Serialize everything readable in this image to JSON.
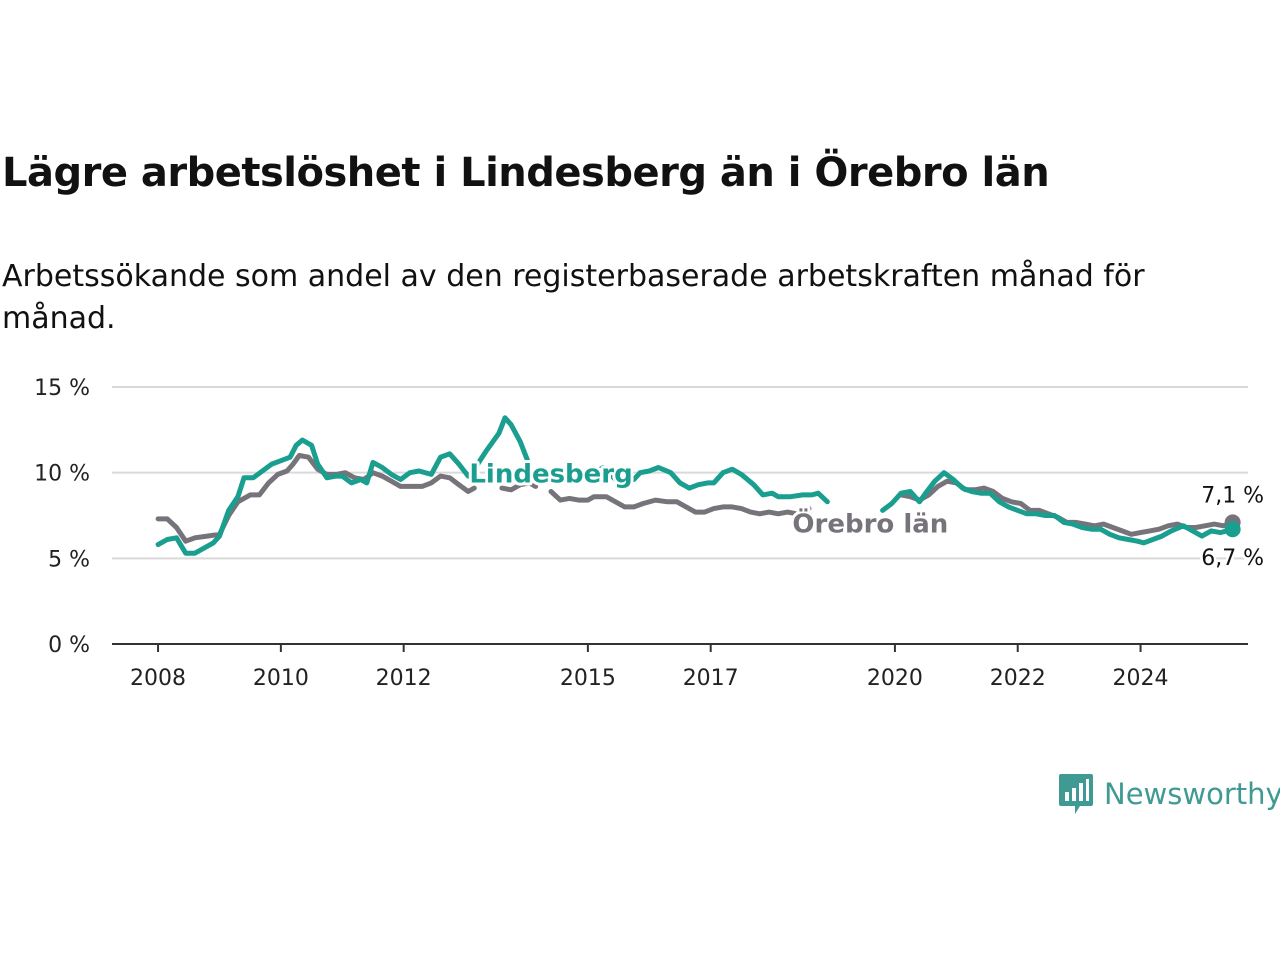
{
  "title": "Lägre arbetslöshet i Lindesberg än i Örebro län",
  "subtitle": "Arbetssökande som andel av den registerbaserade arbetskraften månad för månad.",
  "brand": {
    "name": "Newsworthy",
    "logo_icon": "bar-chart-speech-bubble-icon"
  },
  "colors": {
    "lindesberg": "#1a9e8f",
    "orebro": "#77737b",
    "grid": "#d9d9d9",
    "axis": "#333333"
  },
  "chart_data": {
    "type": "line",
    "title": "Lägre arbetslöshet i Lindesberg än i Örebro län",
    "ylim": [
      0,
      15
    ],
    "yticks": [
      0,
      5,
      10,
      15
    ],
    "ytick_labels": [
      "0 %",
      "5 %",
      "10 %",
      "15 %"
    ],
    "xticks": [
      2008,
      2010,
      2012,
      2015,
      2017,
      2020,
      2022,
      2024
    ],
    "xtick_labels": [
      "2008",
      "2010",
      "2012",
      "2015",
      "2017",
      "2020",
      "2022",
      "2024"
    ],
    "xlim": [
      2007.25,
      2025.75
    ],
    "grid": true,
    "series": [
      {
        "name": "Lindesberg",
        "color": "#1a9e8f",
        "end_label": "6,7 %",
        "segments": [
          [
            [
              2008.0,
              5.8
            ],
            [
              2008.15,
              6.1
            ],
            [
              2008.3,
              6.2
            ],
            [
              2008.45,
              5.3
            ],
            [
              2008.6,
              5.3
            ],
            [
              2008.75,
              5.6
            ],
            [
              2008.9,
              5.9
            ],
            [
              2009.0,
              6.3
            ],
            [
              2009.15,
              7.8
            ],
            [
              2009.3,
              8.6
            ],
            [
              2009.4,
              9.7
            ],
            [
              2009.55,
              9.7
            ],
            [
              2009.7,
              10.1
            ],
            [
              2009.85,
              10.5
            ],
            [
              2010.0,
              10.7
            ],
            [
              2010.15,
              10.9
            ],
            [
              2010.25,
              11.6
            ],
            [
              2010.35,
              11.9
            ],
            [
              2010.5,
              11.6
            ],
            [
              2010.6,
              10.5
            ],
            [
              2010.75,
              9.7
            ],
            [
              2010.9,
              9.8
            ],
            [
              2011.0,
              9.8
            ],
            [
              2011.15,
              9.4
            ],
            [
              2011.3,
              9.6
            ],
            [
              2011.4,
              9.4
            ],
            [
              2011.5,
              10.6
            ],
            [
              2011.65,
              10.3
            ],
            [
              2011.8,
              9.9
            ],
            [
              2011.95,
              9.6
            ],
            [
              2012.1,
              10.0
            ],
            [
              2012.25,
              10.1
            ],
            [
              2012.45,
              9.9
            ],
            [
              2012.6,
              10.9
            ],
            [
              2012.75,
              11.1
            ],
            [
              2012.9,
              10.5
            ],
            [
              2013.05,
              9.8
            ],
            [
              2013.15,
              10.2
            ],
            [
              2013.35,
              11.3
            ],
            [
              2013.55,
              12.3
            ],
            [
              2013.65,
              13.2
            ],
            [
              2013.75,
              12.8
            ],
            [
              2013.9,
              11.8
            ],
            [
              2014.05,
              10.4
            ]
          ],
          [
            [
              2014.6,
              10.0
            ],
            [
              2014.85,
              9.7
            ],
            [
              2015.05,
              9.9
            ],
            [
              2015.25,
              10.3
            ],
            [
              2015.45,
              9.6
            ],
            [
              2015.6,
              9.5
            ],
            [
              2015.75,
              9.6
            ],
            [
              2015.85,
              10.0
            ],
            [
              2016.0,
              10.1
            ],
            [
              2016.15,
              10.3
            ],
            [
              2016.35,
              10.0
            ],
            [
              2016.5,
              9.4
            ],
            [
              2016.65,
              9.1
            ],
            [
              2016.8,
              9.3
            ],
            [
              2016.95,
              9.4
            ],
            [
              2017.05,
              9.4
            ],
            [
              2017.2,
              10.0
            ],
            [
              2017.35,
              10.2
            ],
            [
              2017.5,
              9.9
            ],
            [
              2017.7,
              9.3
            ],
            [
              2017.85,
              8.7
            ],
            [
              2018.0,
              8.8
            ],
            [
              2018.1,
              8.6
            ],
            [
              2018.3,
              8.6
            ],
            [
              2018.5,
              8.7
            ],
            [
              2018.65,
              8.7
            ],
            [
              2018.75,
              8.8
            ],
            [
              2018.9,
              8.3
            ]
          ],
          [
            [
              2019.8,
              7.8
            ],
            [
              2019.95,
              8.2
            ],
            [
              2020.1,
              8.8
            ],
            [
              2020.25,
              8.9
            ],
            [
              2020.4,
              8.3
            ],
            [
              2020.5,
              8.8
            ],
            [
              2020.65,
              9.5
            ],
            [
              2020.8,
              10.0
            ],
            [
              2020.95,
              9.6
            ],
            [
              2021.1,
              9.1
            ],
            [
              2021.25,
              8.9
            ],
            [
              2021.4,
              8.8
            ],
            [
              2021.55,
              8.8
            ],
            [
              2021.7,
              8.3
            ],
            [
              2021.85,
              8.0
            ],
            [
              2022.0,
              7.8
            ],
            [
              2022.15,
              7.6
            ],
            [
              2022.3,
              7.6
            ],
            [
              2022.45,
              7.5
            ],
            [
              2022.6,
              7.5
            ],
            [
              2022.75,
              7.1
            ],
            [
              2022.9,
              7.0
            ],
            [
              2023.05,
              6.8
            ],
            [
              2023.2,
              6.7
            ],
            [
              2023.35,
              6.7
            ],
            [
              2023.5,
              6.4
            ],
            [
              2023.65,
              6.2
            ],
            [
              2023.8,
              6.1
            ],
            [
              2023.95,
              6.0
            ],
            [
              2024.05,
              5.9
            ],
            [
              2024.2,
              6.1
            ],
            [
              2024.35,
              6.3
            ],
            [
              2024.5,
              6.6
            ],
            [
              2024.7,
              6.9
            ],
            [
              2024.85,
              6.6
            ],
            [
              2025.0,
              6.3
            ],
            [
              2025.15,
              6.6
            ],
            [
              2025.3,
              6.5
            ],
            [
              2025.5,
              6.7
            ]
          ]
        ]
      },
      {
        "name": "Örebro län",
        "color": "#77737b",
        "end_label": "7,1 %",
        "segments": [
          [
            [
              2008.0,
              7.3
            ],
            [
              2008.15,
              7.3
            ],
            [
              2008.3,
              6.8
            ],
            [
              2008.45,
              6.0
            ],
            [
              2008.6,
              6.2
            ],
            [
              2008.8,
              6.3
            ],
            [
              2009.0,
              6.4
            ],
            [
              2009.15,
              7.5
            ],
            [
              2009.3,
              8.3
            ],
            [
              2009.5,
              8.7
            ],
            [
              2009.65,
              8.7
            ],
            [
              2009.8,
              9.4
            ],
            [
              2009.95,
              9.9
            ],
            [
              2010.1,
              10.1
            ],
            [
              2010.2,
              10.5
            ],
            [
              2010.3,
              11.0
            ],
            [
              2010.45,
              10.9
            ],
            [
              2010.6,
              10.2
            ],
            [
              2010.75,
              9.9
            ],
            [
              2010.9,
              9.9
            ],
            [
              2011.05,
              10.0
            ],
            [
              2011.2,
              9.7
            ],
            [
              2011.35,
              9.6
            ],
            [
              2011.5,
              10.0
            ],
            [
              2011.65,
              9.8
            ],
            [
              2011.8,
              9.5
            ],
            [
              2011.95,
              9.2
            ],
            [
              2012.1,
              9.2
            ],
            [
              2012.3,
              9.2
            ],
            [
              2012.45,
              9.4
            ],
            [
              2012.6,
              9.8
            ],
            [
              2012.75,
              9.7
            ],
            [
              2012.9,
              9.3
            ],
            [
              2013.05,
              8.9
            ],
            [
              2013.15,
              9.1
            ]
          ],
          [
            [
              2013.6,
              9.1
            ],
            [
              2013.75,
              9.0
            ],
            [
              2013.9,
              9.3
            ],
            [
              2014.05,
              9.4
            ],
            [
              2014.15,
              9.2
            ]
          ],
          [
            [
              2014.4,
              8.9
            ],
            [
              2014.55,
              8.4
            ],
            [
              2014.7,
              8.5
            ],
            [
              2014.85,
              8.4
            ],
            [
              2015.0,
              8.4
            ],
            [
              2015.1,
              8.6
            ],
            [
              2015.3,
              8.6
            ],
            [
              2015.45,
              8.3
            ],
            [
              2015.6,
              8.0
            ],
            [
              2015.75,
              8.0
            ],
            [
              2015.9,
              8.2
            ],
            [
              2016.1,
              8.4
            ],
            [
              2016.3,
              8.3
            ],
            [
              2016.45,
              8.3
            ],
            [
              2016.6,
              8.0
            ],
            [
              2016.75,
              7.7
            ],
            [
              2016.9,
              7.7
            ],
            [
              2017.05,
              7.9
            ],
            [
              2017.2,
              8.0
            ],
            [
              2017.35,
              8.0
            ],
            [
              2017.5,
              7.9
            ],
            [
              2017.65,
              7.7
            ],
            [
              2017.8,
              7.6
            ],
            [
              2017.95,
              7.7
            ],
            [
              2018.1,
              7.6
            ],
            [
              2018.25,
              7.7
            ],
            [
              2018.4,
              7.6
            ],
            [
              2018.6,
              7.9
            ]
          ],
          [
            [
              2020.1,
              8.7
            ],
            [
              2020.25,
              8.6
            ],
            [
              2020.4,
              8.4
            ],
            [
              2020.55,
              8.7
            ],
            [
              2020.7,
              9.2
            ],
            [
              2020.85,
              9.5
            ],
            [
              2021.0,
              9.4
            ],
            [
              2021.15,
              9.0
            ],
            [
              2021.3,
              9.0
            ],
            [
              2021.45,
              9.1
            ],
            [
              2021.6,
              8.9
            ],
            [
              2021.75,
              8.5
            ],
            [
              2021.9,
              8.3
            ],
            [
              2022.05,
              8.2
            ],
            [
              2022.2,
              7.8
            ],
            [
              2022.35,
              7.8
            ],
            [
              2022.5,
              7.6
            ],
            [
              2022.65,
              7.4
            ],
            [
              2022.8,
              7.1
            ],
            [
              2022.95,
              7.1
            ],
            [
              2023.1,
              7.0
            ],
            [
              2023.25,
              6.9
            ],
            [
              2023.4,
              7.0
            ],
            [
              2023.55,
              6.8
            ],
            [
              2023.7,
              6.6
            ],
            [
              2023.85,
              6.4
            ],
            [
              2024.0,
              6.5
            ],
            [
              2024.15,
              6.6
            ],
            [
              2024.3,
              6.7
            ],
            [
              2024.45,
              6.9
            ],
            [
              2024.6,
              7.0
            ],
            [
              2024.75,
              6.8
            ],
            [
              2024.9,
              6.8
            ],
            [
              2025.05,
              6.9
            ],
            [
              2025.2,
              7.0
            ],
            [
              2025.35,
              6.9
            ],
            [
              2025.5,
              7.1
            ]
          ]
        ]
      }
    ]
  }
}
